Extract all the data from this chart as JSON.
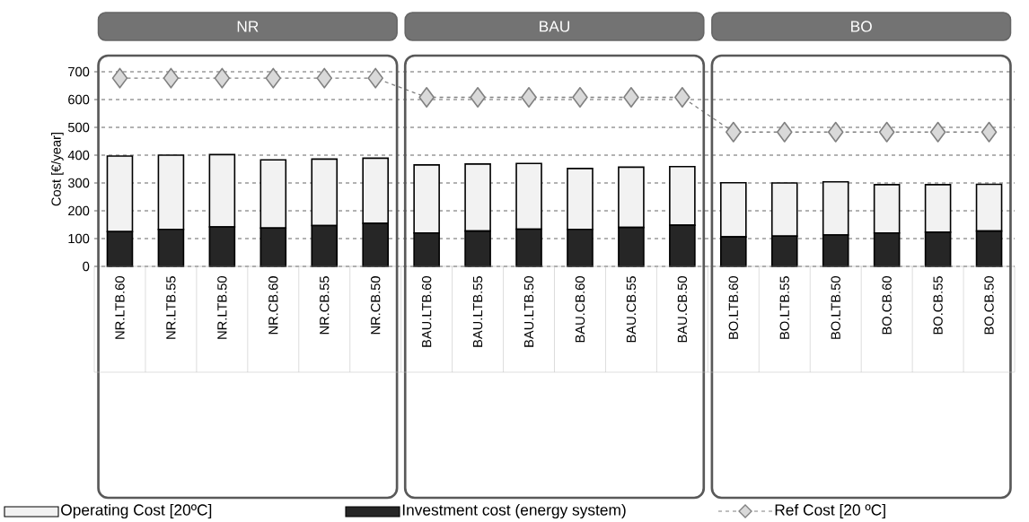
{
  "chart_data": {
    "type": "bar",
    "stacked": true,
    "ylabel": "Cost [€/year]",
    "categories": [
      "NR.LTB.60",
      "NR.LTB.55",
      "NR.LTB.50",
      "NR.CB.60",
      "NR.CB.55",
      "NR.CB.50",
      "BAU.LTB.60",
      "BAU.LTB.55",
      "BAU.LTB.50",
      "BAU.CB.60",
      "BAU.CB.55",
      "BAU.CB.50",
      "BO.LTB.60",
      "BO.LTB.55",
      "BO.LTB.50",
      "BO.CB.60",
      "BO.CB.55",
      "BO.CB.50"
    ],
    "series": [
      {
        "name": "Investment cost (energy system)",
        "color": "#262626",
        "values": [
          125,
          133,
          142,
          138,
          147,
          155,
          120,
          127,
          134,
          133,
          140,
          148,
          106,
          109,
          113,
          120,
          123,
          127
        ]
      },
      {
        "name": "Operating Cost [20ºC]",
        "color": "#f2f2f2",
        "values": [
          272,
          267,
          260,
          245,
          239,
          234,
          245,
          241,
          236,
          219,
          217,
          211,
          195,
          191,
          191,
          174,
          171,
          168
        ]
      },
      {
        "name": "Ref Cost [20 ºC]",
        "type": "line",
        "color": "#808080",
        "marker": "diamond",
        "line_style": "dashed",
        "values": [
          677,
          677,
          677,
          677,
          677,
          677,
          608,
          608,
          608,
          608,
          608,
          608,
          483,
          483,
          483,
          483,
          483,
          483
        ]
      }
    ],
    "annotations": [
      "NR",
      "BAU",
      "BO"
    ],
    "ylim": [
      0,
      700
    ],
    "yticks": [
      0,
      100,
      200,
      300,
      400,
      500,
      600,
      700
    ],
    "grid": "y",
    "legend": "bottom"
  }
}
